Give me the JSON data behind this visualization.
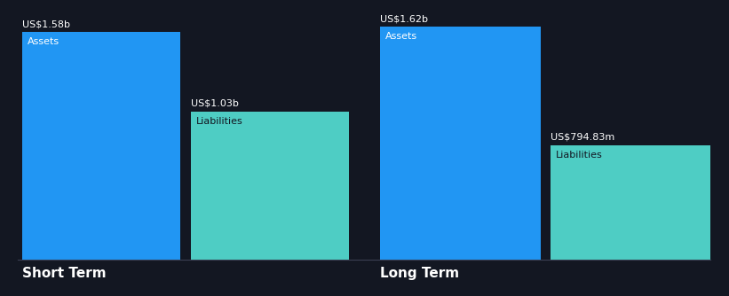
{
  "background_color": "#131722",
  "asset_color": "#2196f3",
  "liability_color": "#4ecdc4",
  "text_color": "#ffffff",
  "label_text_color": "#131722",
  "baseline_color": "#3a3f52",
  "groups": [
    {
      "label": "Short Term",
      "asset_value": 1.58,
      "asset_label": "US$1.58b",
      "asset_text": "Assets",
      "liability_value": 1.03,
      "liability_label": "US$1.03b",
      "liability_text": "Liabilities"
    },
    {
      "label": "Long Term",
      "asset_value": 1.62,
      "asset_label": "US$1.62b",
      "asset_text": "Assets",
      "liability_value": 0.79483,
      "liability_label": "US$794.83m",
      "liability_text": "Liabilities"
    }
  ],
  "max_value": 1.62,
  "value_label_fontsize": 8,
  "bar_label_fontsize": 8,
  "group_label_fontsize": 11
}
